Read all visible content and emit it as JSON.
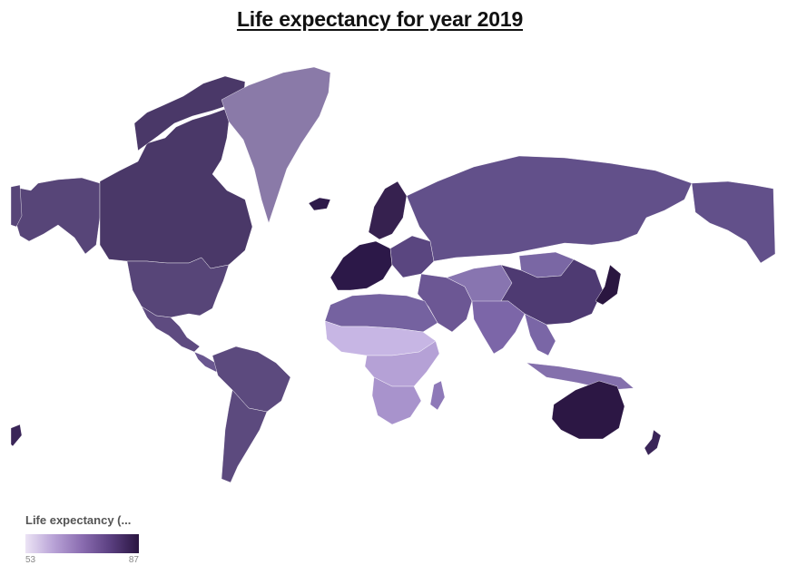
{
  "title": "Life expectancy for year 2019",
  "legend": {
    "title": "Life expectancy (...",
    "min_label": "53",
    "max_label": "87",
    "min_value": 53,
    "max_value": 87,
    "colors": {
      "low": "#ece4f5",
      "high": "#2a1540"
    }
  },
  "map_data": {
    "type": "choropleth",
    "projection": "mercator",
    "variable": "Life expectancy",
    "year": 2019,
    "regions": [
      {
        "name": "Canada",
        "shade": "#4a3868"
      },
      {
        "name": "United States",
        "shade": "#574578"
      },
      {
        "name": "Alaska",
        "shade": "#574578"
      },
      {
        "name": "Greenland",
        "shade": "#8a7aa8"
      },
      {
        "name": "Mexico",
        "shade": "#5e4b80"
      },
      {
        "name": "Central America",
        "shade": "#6a5790"
      },
      {
        "name": "South America",
        "shade": "#5c4a7e"
      },
      {
        "name": "Iceland",
        "shade": "#2e1a4a"
      },
      {
        "name": "Western Europe",
        "shade": "#2c1848"
      },
      {
        "name": "Scandinavia",
        "shade": "#36214f"
      },
      {
        "name": "Eastern Europe",
        "shade": "#5a4680"
      },
      {
        "name": "Russia",
        "shade": "#62508a"
      },
      {
        "name": "North Africa",
        "shade": "#7562a0"
      },
      {
        "name": "Sahel",
        "shade": "#c7b6e4"
      },
      {
        "name": "Central Africa",
        "shade": "#b5a1d6"
      },
      {
        "name": "Southern Africa",
        "shade": "#a893cc"
      },
      {
        "name": "Madagascar",
        "shade": "#8e79b8"
      },
      {
        "name": "Middle East",
        "shade": "#6c5794"
      },
      {
        "name": "Central Asia",
        "shade": "#8875b0"
      },
      {
        "name": "India",
        "shade": "#7c66a8"
      },
      {
        "name": "China",
        "shade": "#4e3a72"
      },
      {
        "name": "Mongolia",
        "shade": "#7a67a4"
      },
      {
        "name": "Japan",
        "shade": "#2a1640"
      },
      {
        "name": "Southeast Asia",
        "shade": "#7a66a6"
      },
      {
        "name": "Indonesia",
        "shade": "#8470ac"
      },
      {
        "name": "Australia",
        "shade": "#2c1744"
      },
      {
        "name": "New Zealand",
        "shade": "#3a2558"
      }
    ]
  }
}
